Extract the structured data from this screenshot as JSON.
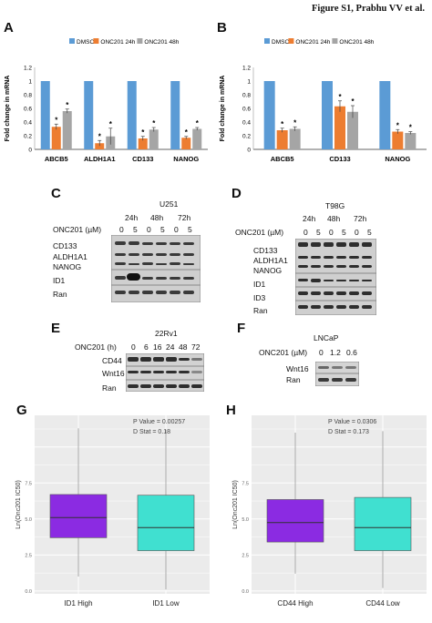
{
  "figure_title": "Figure S1, Prabhu VV et al.",
  "panels": {
    "A": "A",
    "B": "B",
    "C": "C",
    "D": "D",
    "E": "E",
    "F": "F",
    "G": "G",
    "H": "H"
  },
  "panel_C": {
    "cell_line": "U251",
    "times": [
      "24h",
      "48h",
      "72h"
    ],
    "treatment_label": "ONC201 (µM)",
    "doses": [
      "0",
      "5",
      "0",
      "5",
      "0",
      "5"
    ],
    "proteins": [
      "CD133",
      "ALDH1A1",
      "NANOG",
      "ID1",
      "Ran"
    ]
  },
  "panel_D": {
    "cell_line": "T98G",
    "times": [
      "24h",
      "48h",
      "72h"
    ],
    "treatment_label": "ONC201 (µM)",
    "doses": [
      "0",
      "5",
      "0",
      "5",
      "0",
      "5"
    ],
    "proteins": [
      "CD133",
      "ALDH1A1",
      "NANOG",
      "ID1",
      "ID3",
      "Ran"
    ]
  },
  "panel_E": {
    "cell_line": "22Rv1",
    "treatment_label": "ONC201 (h)",
    "times": [
      "0",
      "6",
      "16",
      "24",
      "48",
      "72"
    ],
    "proteins": [
      "CD44",
      "Wnt16",
      "Ran"
    ]
  },
  "panel_F": {
    "cell_line": "LNCaP",
    "treatment_label": "ONC201 (µM)",
    "doses": [
      "0",
      "1.2",
      "0.6"
    ],
    "proteins": [
      "Wnt16",
      "Ran"
    ]
  },
  "chart_data": [
    {
      "panel": "A",
      "type": "bar",
      "categories": [
        "ABCB5",
        "ALDH1A1",
        "CD133",
        "NANOG"
      ],
      "series": [
        {
          "name": "DMSO",
          "values": [
            1,
            1,
            1,
            1
          ],
          "color": "#5b9bd5"
        },
        {
          "name": "ONC201 24h",
          "values": [
            0.33,
            0.09,
            0.16,
            0.17
          ],
          "errors": [
            0.04,
            0.04,
            0.03,
            0.02
          ],
          "color": "#ed7d31"
        },
        {
          "name": "ONC201 48h",
          "values": [
            0.56,
            0.19,
            0.29,
            0.3
          ],
          "errors": [
            0.03,
            0.12,
            0.03,
            0.02
          ],
          "color": "#a5a5a5"
        }
      ],
      "significance": "*",
      "ylabel": "Fold change in mRNA",
      "yticks": [
        "0",
        "0.2",
        "0.4",
        "0.6",
        "0.8",
        "1",
        "1.2"
      ],
      "ylim": [
        0,
        1.2
      ],
      "legend": "top"
    },
    {
      "panel": "B",
      "type": "bar",
      "categories": [
        "ABCB5",
        "CD133",
        "NANOG"
      ],
      "series": [
        {
          "name": "DMSO",
          "values": [
            1,
            1,
            1
          ],
          "color": "#5b9bd5"
        },
        {
          "name": "ONC201 24h",
          "values": [
            0.28,
            0.63,
            0.26
          ],
          "errors": [
            0.03,
            0.08,
            0.03
          ],
          "color": "#ed7d31"
        },
        {
          "name": "ONC201 48h",
          "values": [
            0.3,
            0.55,
            0.24
          ],
          "errors": [
            0.03,
            0.09,
            0.02
          ],
          "color": "#a5a5a5"
        }
      ],
      "significance": "*",
      "ylabel": "Fold change in mRNA",
      "yticks": [
        "0",
        "0.2",
        "0.4",
        "0.6",
        "0.8",
        "1",
        "1.2"
      ],
      "ylim": [
        0,
        1.2
      ],
      "legend": "top"
    },
    {
      "panel": "G",
      "type": "box",
      "categories": [
        "ID1 High",
        "ID1 Low"
      ],
      "ylabel": "Ln(Onc201 IC50)",
      "yticks": [
        "0.0",
        "2.5",
        "5.0",
        "7.5"
      ],
      "ylim": [
        -0.2,
        12.2
      ],
      "annotations": [
        "P Value = 0.00257",
        "D Stat = 0.18"
      ],
      "boxes": [
        {
          "name": "ID1 High",
          "whisker_low": 1.0,
          "q1": 3.7,
          "median": 5.1,
          "q3": 6.7,
          "whisker_high": 11.3,
          "color": "#8b2be2"
        },
        {
          "name": "ID1 Low",
          "whisker_low": 0.1,
          "q1": 2.8,
          "median": 4.4,
          "q3": 6.65,
          "whisker_high": 11.2,
          "color": "#40e0d0"
        }
      ]
    },
    {
      "panel": "H",
      "type": "box",
      "categories": [
        "CD44 High",
        "CD44 Low"
      ],
      "ylabel": "Ln(Onc201 IC50)",
      "yticks": [
        "0.0",
        "2.5",
        "5.0",
        "7.5"
      ],
      "ylim": [
        -0.2,
        12.2
      ],
      "annotations": [
        "P Value = 0.0306",
        "D Stat = 0.173"
      ],
      "boxes": [
        {
          "name": "CD44 High",
          "whisker_low": 1.2,
          "q1": 3.4,
          "median": 4.75,
          "q3": 6.35,
          "whisker_high": 11.0,
          "color": "#8b2be2"
        },
        {
          "name": "CD44 Low",
          "whisker_low": 0.2,
          "q1": 2.8,
          "median": 4.4,
          "q3": 6.5,
          "whisker_high": 11.1,
          "color": "#40e0d0"
        }
      ]
    }
  ]
}
